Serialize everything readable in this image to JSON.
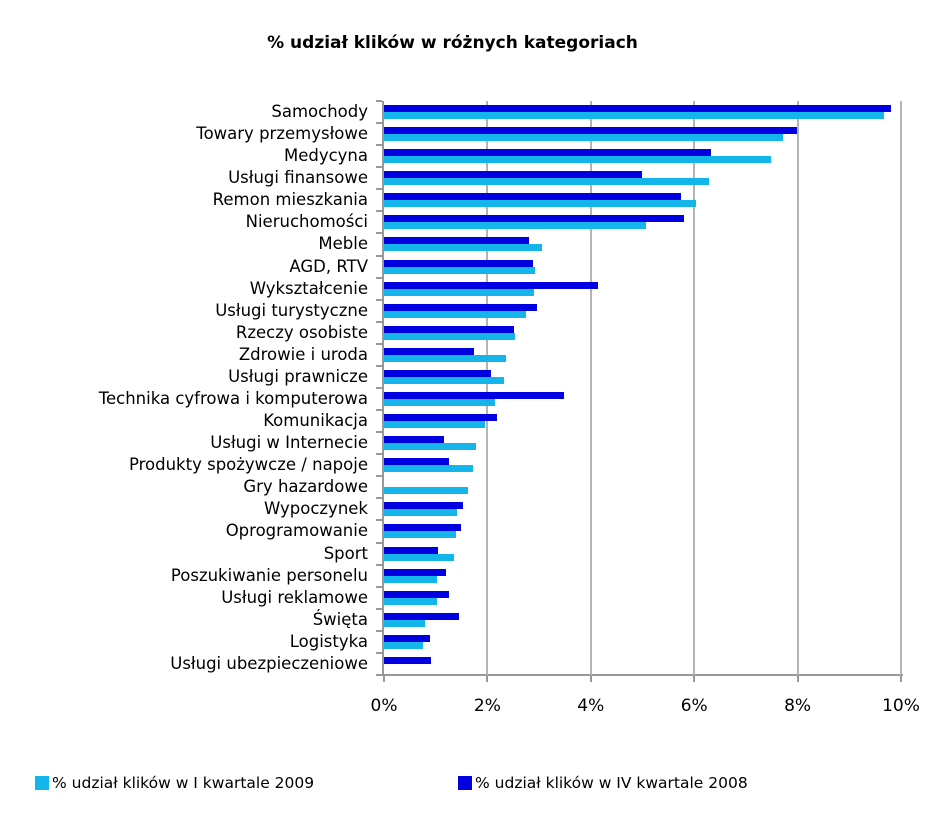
{
  "chart_data": {
    "type": "bar",
    "orientation": "horizontal",
    "title": "% udział klików w różnych kategoriach",
    "xlabel": "",
    "ylabel": "",
    "xlim": [
      0,
      10
    ],
    "x_ticks": [
      "0%",
      "2%",
      "4%",
      "6%",
      "8%",
      "10%"
    ],
    "grid": true,
    "legend_position": "bottom",
    "categories": [
      "Samochody",
      "Towary przemysłowe",
      "Medycyna",
      "Usługi finansowe",
      "Remon mieszkania",
      "Nieruchomości",
      "Meble",
      "AGD, RTV",
      "Wykształcenie",
      "Usługi turystyczne",
      "Rzeczy osobiste",
      "Zdrowie i uroda",
      "Usługi prawnicze",
      "Technika cyfrowa i komputerowa",
      "Komunikacja",
      "Usługi w Internecie",
      "Produkty spożywcze / napoje",
      "Gry hazardowe",
      "Wypoczynek",
      "Oprogramowanie",
      "Sport",
      "Poszukiwanie personelu",
      "Usługi reklamowe",
      "Święta",
      "Logistyka",
      "Usługi ubezpieczeniowe"
    ],
    "series": [
      {
        "name": "% udział klików w I kwartale 2009",
        "color": "#13b5ea",
        "values": [
          9.67,
          7.72,
          7.49,
          6.29,
          6.03,
          5.07,
          3.06,
          2.92,
          2.9,
          2.75,
          2.53,
          2.36,
          2.32,
          2.15,
          1.95,
          1.78,
          1.72,
          1.62,
          1.41,
          1.39,
          1.35,
          1.02,
          1.02,
          0.79,
          0.75,
          0
        ]
      },
      {
        "name": "% udział klików w IV kwartale 2008",
        "color": "#0000e0",
        "values": [
          9.8,
          7.99,
          6.32,
          4.99,
          5.74,
          5.8,
          2.81,
          2.88,
          4.14,
          2.96,
          2.51,
          1.74,
          2.07,
          3.48,
          2.19,
          1.16,
          1.26,
          0,
          1.53,
          1.49,
          1.04,
          1.2,
          1.26,
          1.45,
          0.89,
          0.91
        ]
      }
    ]
  },
  "legend": {
    "items": [
      {
        "label": "% udział klików w I kwartale 2009",
        "color": "#13b5ea"
      },
      {
        "label": "% udział klików w IV kwartale 2008",
        "color": "#0000e0"
      }
    ]
  }
}
